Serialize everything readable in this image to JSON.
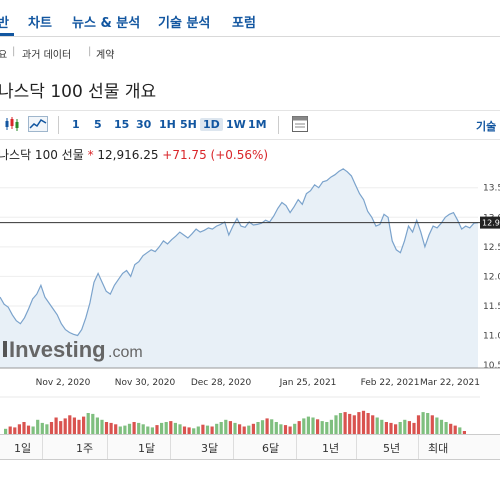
{
  "topnav": {
    "items": [
      {
        "label": "반"
      },
      {
        "label": "차트"
      },
      {
        "label": "뉴스 & 분석"
      },
      {
        "label": "기술 분석"
      },
      {
        "label": "포럼"
      }
    ]
  },
  "subnav": {
    "items": [
      {
        "label": "요"
      },
      {
        "label": "과거 데이터"
      },
      {
        "label": "계약"
      }
    ]
  },
  "page_title": "나스닥 100 선물 개요",
  "toolbar": {
    "intervals": [
      "1",
      "5",
      "15",
      "30",
      "1H",
      "5H",
      "1D",
      "1W",
      "1M"
    ],
    "selected_interval": "1D",
    "right_label": "기술"
  },
  "quote": {
    "name": "나스닥 100 선물",
    "price": "12,916.25",
    "change": "+71.75",
    "change_pct": "(+0.56%)",
    "marker": "*",
    "color_up": "#d9262a"
  },
  "watermark": {
    "brand": "Investing",
    "suffix": ".com"
  },
  "range_buttons": [
    "1일",
    "1주",
    "1달",
    "3달",
    "6달",
    "1년",
    "5년",
    "최대"
  ],
  "chart_data": {
    "type": "area",
    "x_labels": [
      "Nov 2, 2020",
      "Nov 30, 2020",
      "Dec 28, 2020",
      "Jan 25, 2021",
      "Feb 22, 2021",
      "Mar 22, 2021"
    ],
    "y_ticks": [
      "13.5",
      "13.0",
      "12.5",
      "12.0",
      "11.5",
      "11.0",
      "10.5"
    ],
    "current_label": "12.9",
    "volume_ticks": [
      "1"
    ],
    "price_series_k": [
      11.65,
      11.53,
      11.48,
      11.35,
      11.25,
      11.2,
      11.3,
      11.45,
      11.62,
      11.7,
      11.85,
      11.65,
      11.55,
      11.45,
      11.35,
      11.2,
      11.1,
      11.05,
      11.02,
      11.0,
      11.1,
      11.3,
      11.55,
      11.9,
      12.05,
      11.9,
      11.75,
      11.7,
      11.85,
      11.95,
      12.05,
      12.1,
      12.0,
      12.2,
      12.25,
      12.35,
      12.4,
      12.45,
      12.42,
      12.5,
      12.6,
      12.55,
      12.62,
      12.68,
      12.75,
      12.7,
      12.65,
      12.72,
      12.8,
      12.75,
      12.78,
      12.82,
      12.8,
      12.85,
      12.88,
      12.92,
      12.7,
      12.85,
      12.98,
      12.85,
      12.83,
      12.92,
      12.87,
      12.88,
      12.9,
      12.95,
      12.92,
      13.02,
      13.15,
      13.25,
      13.2,
      13.08,
      13.18,
      13.3,
      13.22,
      13.4,
      13.45,
      13.55,
      13.5,
      13.6,
      13.62,
      13.68,
      13.72,
      13.78,
      13.82,
      13.77,
      13.7,
      13.55,
      13.4,
      13.3,
      13.1,
      13.0,
      12.85,
      12.88,
      13.05,
      13.0,
      12.6,
      12.45,
      12.4,
      12.6,
      12.85,
      12.75,
      12.95,
      12.75,
      12.5,
      12.7,
      12.85,
      12.82,
      12.9,
      13.0,
      13.05,
      13.08,
      12.95,
      12.8,
      12.85,
      12.82,
      12.9,
      12.91
    ],
    "volume_series": [
      0.25,
      0.3,
      0.28,
      0.35,
      0.4,
      0.32,
      0.3,
      0.45,
      0.38,
      0.35,
      0.4,
      0.5,
      0.42,
      0.48,
      0.55,
      0.5,
      0.45,
      0.52,
      0.6,
      0.58,
      0.5,
      0.45,
      0.4,
      0.38,
      0.35,
      0.3,
      0.32,
      0.36,
      0.4,
      0.38,
      0.35,
      0.3,
      0.28,
      0.33,
      0.38,
      0.4,
      0.42,
      0.38,
      0.35,
      0.3,
      0.28,
      0.26,
      0.3,
      0.34,
      0.32,
      0.3,
      0.36,
      0.4,
      0.45,
      0.42,
      0.38,
      0.35,
      0.3,
      0.32,
      0.36,
      0.4,
      0.44,
      0.48,
      0.46,
      0.4,
      0.35,
      0.33,
      0.3,
      0.36,
      0.42,
      0.48,
      0.52,
      0.5,
      0.46,
      0.42,
      0.4,
      0.45,
      0.55,
      0.6,
      0.62,
      0.58,
      0.55,
      0.62,
      0.65,
      0.6,
      0.55,
      0.5,
      0.45,
      0.4,
      0.38,
      0.35,
      0.4,
      0.45,
      0.42,
      0.38,
      0.55,
      0.62,
      0.6,
      0.55,
      0.5,
      0.45,
      0.4,
      0.36,
      0.32,
      0.28,
      0.2,
      0.1
    ],
    "up_color": "#7fbf7f",
    "down_color": "#d9534f",
    "line_color": "#7ba3cc",
    "fill_color": "#e8f0f7"
  }
}
